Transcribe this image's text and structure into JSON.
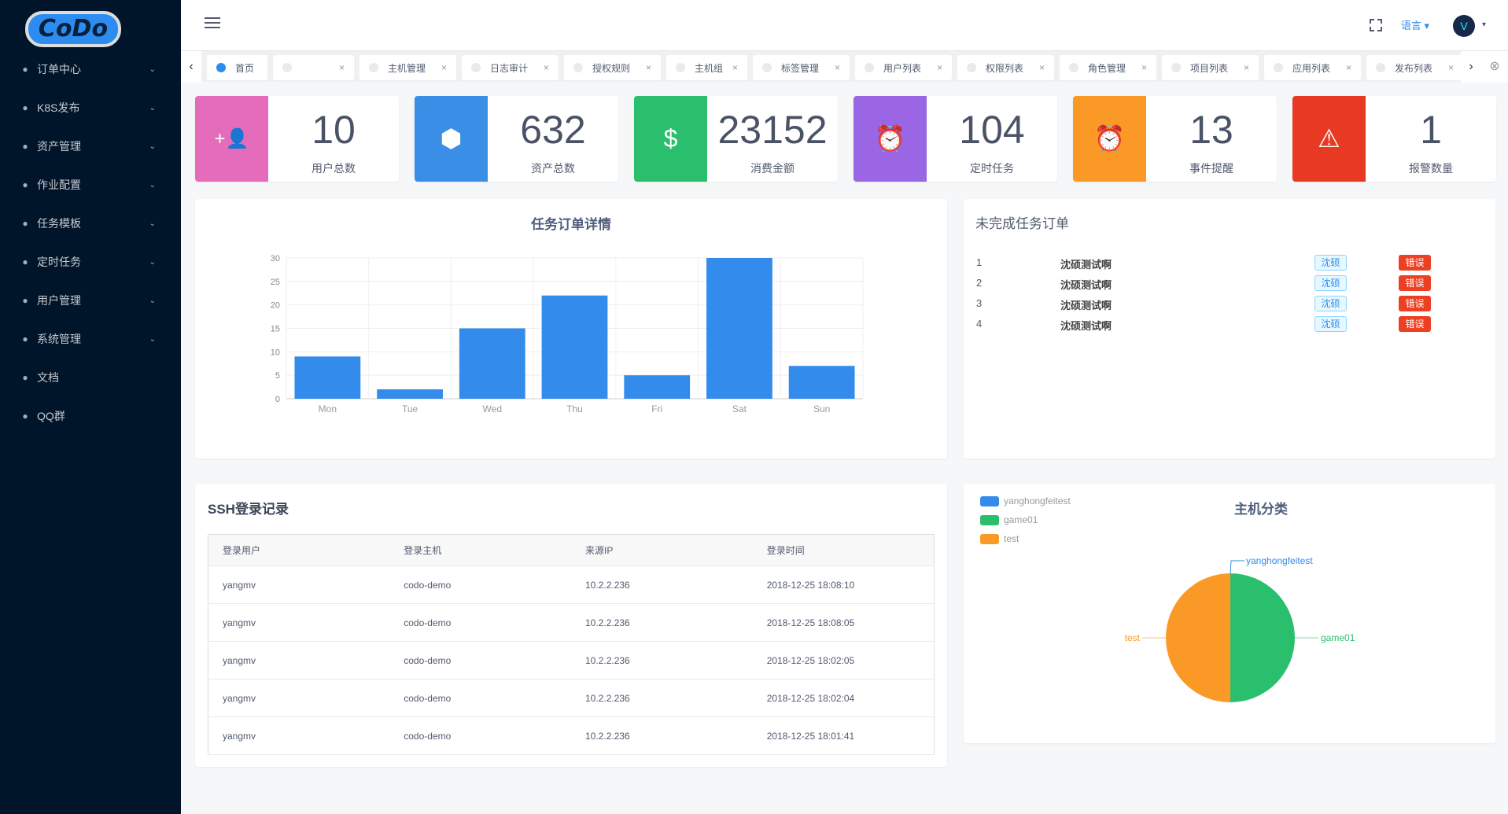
{
  "logo": "CoDo",
  "sidebar": {
    "items": [
      {
        "label": "订单中心",
        "icon": "list-icon",
        "chev": "⌄"
      },
      {
        "label": "K8S发布",
        "icon": "robot-icon",
        "chev": "⌄"
      },
      {
        "label": "资产管理",
        "icon": "cube-icon",
        "chev": "⌄"
      },
      {
        "label": "作业配置",
        "icon": "ship-icon",
        "chev": "⌄"
      },
      {
        "label": "任务模板",
        "icon": "planet-icon",
        "chev": "⌄"
      },
      {
        "label": "定时任务",
        "icon": "alarm-icon",
        "chev": "⌄"
      },
      {
        "label": "用户管理",
        "icon": "users-icon",
        "chev": "⌄"
      },
      {
        "label": "系统管理",
        "icon": "gear-icon",
        "chev": "⌄"
      },
      {
        "label": "文档",
        "icon": "book-icon"
      },
      {
        "label": "QQ群",
        "icon": "qq-icon"
      }
    ]
  },
  "header": {
    "language": "语言 ▾",
    "avatar": "V",
    "avatar_caret": "▾"
  },
  "tabs": [
    {
      "label": "首页",
      "active": true
    },
    {
      "label": ""
    },
    {
      "label": "主机管理"
    },
    {
      "label": "日志审计"
    },
    {
      "label": "授权规则"
    },
    {
      "label": "主机组"
    },
    {
      "label": "标签管理"
    },
    {
      "label": "用户列表"
    },
    {
      "label": "权限列表"
    },
    {
      "label": "角色管理"
    },
    {
      "label": "项目列表"
    },
    {
      "label": "应用列表"
    },
    {
      "label": "发布列表"
    }
  ],
  "tab_close": "×",
  "tab_prev": "‹",
  "tab_next": "›",
  "tab_close_all": "⊗",
  "stats": [
    {
      "value": "10",
      "label": "用户总数",
      "color": "#e46cbb",
      "icon": "user-add-icon",
      "glyph": "+👤"
    },
    {
      "value": "632",
      "label": "资产总数",
      "color": "#3a8ee6",
      "icon": "cube-icon",
      "glyph": "⬢"
    },
    {
      "value": "23152",
      "label": "消费金额",
      "color": "#2abf6d",
      "icon": "dollar-icon",
      "glyph": "$"
    },
    {
      "value": "104",
      "label": "定时任务",
      "color": "#9a66e4",
      "icon": "alarm-icon",
      "glyph": "⏰"
    },
    {
      "value": "13",
      "label": "事件提醒",
      "color": "#fa9925",
      "icon": "alarm-icon",
      "glyph": "⏰"
    },
    {
      "value": "1",
      "label": "报警数量",
      "color": "#e83a23",
      "icon": "warning-icon",
      "glyph": "⚠"
    }
  ],
  "chart_data": [
    {
      "type": "bar",
      "title": "任务订单详情",
      "categories": [
        "Mon",
        "Tue",
        "Wed",
        "Thu",
        "Fri",
        "Sat",
        "Sun"
      ],
      "values": [
        9,
        2,
        15,
        22,
        5,
        30,
        7
      ],
      "ylim": [
        0,
        30
      ],
      "yticks": [
        "0",
        "5",
        "10",
        "15",
        "20",
        "25",
        "30"
      ],
      "color": "#338beb",
      "grid": true
    },
    {
      "type": "pie",
      "title": "主机分类",
      "labels": [
        "yanghongfeitest",
        "game01",
        "test"
      ],
      "values": [
        0,
        1,
        1
      ],
      "colors": [
        "#338beb",
        "#2abf6d",
        "#fa9925"
      ],
      "legend": "top-left"
    }
  ],
  "orders": {
    "title": "未完成任务订单",
    "rows": [
      {
        "no": "1",
        "name": "沈硕测试啊",
        "user": "沈硕",
        "status": "错误"
      },
      {
        "no": "2",
        "name": "沈硕测试啊",
        "user": "沈硕",
        "status": "错误"
      },
      {
        "no": "3",
        "name": "沈硕测试啊",
        "user": "沈硕",
        "status": "错误"
      },
      {
        "no": "4",
        "name": "沈硕测试啊",
        "user": "沈硕",
        "status": "错误"
      }
    ]
  },
  "ssh": {
    "title": "SSH登录记录",
    "columns": [
      "登录用户",
      "登录主机",
      "来源IP",
      "登录时间"
    ],
    "rows": [
      [
        "yangmv",
        "codo-demo",
        "10.2.2.236",
        "2018-12-25 18:08:10"
      ],
      [
        "yangmv",
        "codo-demo",
        "10.2.2.236",
        "2018-12-25 18:08:05"
      ],
      [
        "yangmv",
        "codo-demo",
        "10.2.2.236",
        "2018-12-25 18:02:05"
      ],
      [
        "yangmv",
        "codo-demo",
        "10.2.2.236",
        "2018-12-25 18:02:04"
      ],
      [
        "yangmv",
        "codo-demo",
        "10.2.2.236",
        "2018-12-25 18:01:41"
      ]
    ]
  }
}
